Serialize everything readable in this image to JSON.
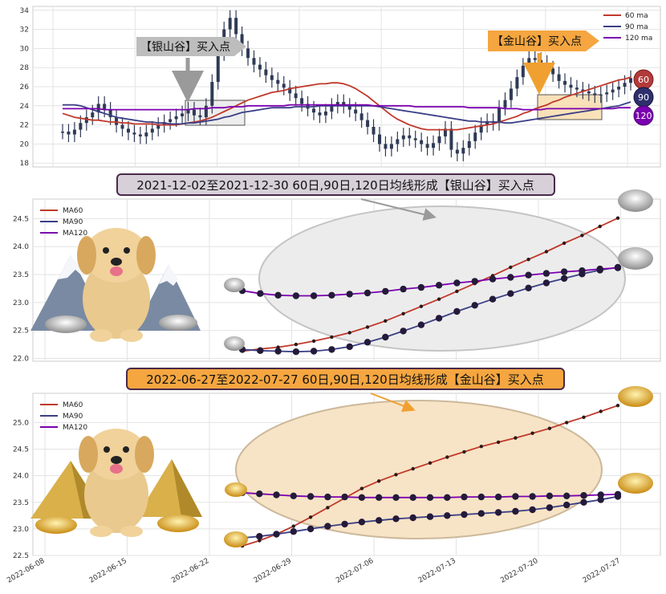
{
  "colors": {
    "ma60": "#c0392b",
    "ma90": "#3b3f86",
    "ma120": "#7b00b0",
    "candle": "#2f3a55",
    "silver_fill": "#e8e8e8",
    "gold_fill": "#f7d9a8",
    "silver_banner": "#d7d0d9",
    "gold_banner": "#f5a640"
  },
  "chart_data": [
    {
      "type": "line",
      "name": "top",
      "ylim": [
        17.6,
        34.4
      ],
      "yticks": [
        "18",
        "20",
        "22",
        "24",
        "26",
        "28",
        "30",
        "32",
        "34"
      ],
      "legend": [
        "60 ma",
        "90 ma",
        "120 ma"
      ],
      "badges": [
        "60",
        "90",
        "120"
      ],
      "callouts": {
        "silver": "【银山谷】买入点",
        "gold": "【金山谷】买入点"
      },
      "close": [
        21.3,
        21.0,
        21.5,
        22.2,
        22.8,
        23.3,
        24.2,
        23.6,
        22.8,
        22.0,
        21.6,
        21.2,
        21.0,
        20.8,
        21.2,
        21.6,
        22.0,
        22.3,
        22.6,
        22.9,
        23.2,
        23.6,
        23.0,
        22.8,
        24.0,
        26.5,
        29.5,
        32.0,
        33.2,
        31.5,
        30.0,
        29.0,
        28.3,
        27.8,
        27.2,
        26.7,
        26.3,
        25.9,
        25.3,
        24.8,
        24.2,
        23.7,
        23.3,
        23.0,
        23.4,
        24.0,
        24.4,
        24.0,
        23.6,
        23.2,
        22.5,
        21.8,
        21.0,
        20.0,
        19.5,
        20.0,
        20.5,
        20.9,
        20.6,
        20.4,
        20.0,
        19.6,
        20.1,
        20.8,
        21.6,
        19.4,
        19.0,
        19.6,
        20.3,
        21.2,
        22.0,
        22.4,
        22.2,
        23.8,
        24.6,
        25.8,
        27.0,
        28.2,
        29.0,
        28.8,
        28.5,
        27.9,
        27.3,
        26.6,
        26.2,
        25.9,
        25.7,
        25.5,
        25.3,
        25.1,
        25.2,
        25.4,
        25.7,
        26.0,
        26.4,
        26.9
      ],
      "series": [
        {
          "name": "60 ma",
          "values": [
            23.2,
            23.0,
            22.8,
            22.7,
            22.6,
            22.5,
            22.5,
            22.4,
            22.3,
            22.3,
            22.2,
            22.2,
            22.1,
            22.1,
            22.1,
            22.1,
            22.0,
            22.0,
            22.0,
            22.0,
            22.1,
            22.2,
            22.3,
            22.4,
            22.6,
            22.8,
            23.1,
            23.4,
            23.7,
            24.0,
            24.3,
            24.6,
            24.8,
            25.0,
            25.2,
            25.4,
            25.5,
            25.6,
            25.8,
            25.9,
            26.0,
            26.1,
            26.2,
            26.3,
            26.3,
            26.4,
            26.4,
            26.3,
            26.1,
            25.8,
            25.4,
            25.0,
            24.5,
            24.0,
            23.5,
            23.0,
            22.6,
            22.3,
            22.0,
            21.8,
            21.6,
            21.5,
            21.5,
            21.5,
            21.5,
            21.5,
            21.5,
            21.6,
            21.7,
            21.8,
            21.9,
            22.0,
            22.1,
            22.3,
            22.5,
            22.7,
            22.9,
            23.2,
            23.4,
            23.7,
            23.9,
            24.1,
            24.4,
            24.6,
            24.9,
            25.1,
            25.3,
            25.5,
            25.7,
            25.9,
            26.1,
            26.3,
            26.5,
            26.7,
            26.8,
            27.0
          ]
        },
        {
          "name": "90 ma",
          "values": [
            24.1,
            24.1,
            24.1,
            24.0,
            23.8,
            23.6,
            23.4,
            23.2,
            23.0,
            22.8,
            22.7,
            22.6,
            22.5,
            22.4,
            22.3,
            22.3,
            22.2,
            22.2,
            22.1,
            22.1,
            22.1,
            22.2,
            22.2,
            22.3,
            22.4,
            22.5,
            22.6,
            22.8,
            22.9,
            23.1,
            23.3,
            23.4,
            23.5,
            23.6,
            23.7,
            23.8,
            23.8,
            23.8,
            23.8,
            23.9,
            23.9,
            23.9,
            23.9,
            24.0,
            24.0,
            24.0,
            24.0,
            24.0,
            24.0,
            24.0,
            24.0,
            24.0,
            24.0,
            23.9,
            23.8,
            23.7,
            23.6,
            23.5,
            23.4,
            23.3,
            23.2,
            23.1,
            23.0,
            22.9,
            22.8,
            22.7,
            22.6,
            22.5,
            22.4,
            22.4,
            22.3,
            22.3,
            22.3,
            22.3,
            22.2,
            22.2,
            22.3,
            22.4,
            22.5,
            22.6,
            22.7,
            22.8,
            22.9,
            23.0,
            23.1,
            23.2,
            23.3,
            23.4,
            23.5,
            23.6,
            23.7,
            23.8,
            23.9,
            24.0,
            24.2,
            24.4
          ]
        },
        {
          "name": "120 ma",
          "values": [
            23.7,
            23.7,
            23.7,
            23.7,
            23.7,
            23.7,
            23.7,
            23.6,
            23.6,
            23.6,
            23.6,
            23.6,
            23.6,
            23.6,
            23.6,
            23.6,
            23.6,
            23.6,
            23.6,
            23.6,
            23.6,
            23.6,
            23.7,
            23.7,
            23.7,
            23.8,
            23.8,
            23.8,
            23.9,
            23.9,
            23.9,
            24.0,
            24.0,
            24.0,
            24.0,
            24.0,
            24.0,
            24.0,
            24.1,
            24.1,
            24.1,
            24.1,
            24.1,
            24.1,
            24.1,
            24.1,
            24.1,
            24.1,
            24.1,
            24.1,
            24.1,
            24.1,
            24.0,
            24.0,
            24.0,
            24.0,
            24.0,
            24.0,
            24.0,
            23.9,
            23.9,
            23.9,
            23.9,
            23.9,
            23.9,
            23.9,
            23.9,
            23.9,
            23.8,
            23.8,
            23.8,
            23.8,
            23.8,
            23.8,
            23.7,
            23.7,
            23.7,
            23.6,
            23.6,
            23.6,
            23.6,
            23.7,
            23.7,
            23.7,
            23.7,
            23.7,
            23.7,
            23.7,
            23.7,
            23.7,
            23.7,
            23.7,
            23.7,
            23.8,
            23.8,
            23.8
          ]
        }
      ]
    },
    {
      "type": "line",
      "name": "silver",
      "title": "2021-12-02至2021-12-30 60日,90日,120日均线形成【银山谷】买入点",
      "ylim": [
        21.95,
        24.85
      ],
      "yticks": [
        "22.0",
        "22.5",
        "23.0",
        "23.5",
        "24.0",
        "24.5"
      ],
      "legend": [
        "MA60",
        "MA90",
        "MA120"
      ],
      "x": [
        1,
        2,
        3,
        4,
        5,
        6,
        7,
        8,
        9,
        10,
        11,
        12,
        13,
        14,
        15,
        16,
        17,
        18,
        19,
        20,
        21,
        22
      ],
      "series": [
        {
          "name": "MA60",
          "values": [
            22.13,
            22.17,
            22.2,
            22.25,
            22.31,
            22.38,
            22.46,
            22.56,
            22.67,
            22.8,
            22.93,
            23.06,
            23.2,
            23.34,
            23.48,
            23.63,
            23.77,
            23.91,
            24.06,
            24.2,
            24.36,
            24.51
          ]
        },
        {
          "name": "MA90",
          "values": [
            22.16,
            22.14,
            22.13,
            22.12,
            22.13,
            22.16,
            22.21,
            22.29,
            22.38,
            22.49,
            22.6,
            22.72,
            22.84,
            22.95,
            23.06,
            23.16,
            23.26,
            23.35,
            23.43,
            23.51,
            23.58,
            23.63
          ]
        },
        {
          "name": "MA120",
          "values": [
            23.21,
            23.16,
            23.13,
            23.12,
            23.12,
            23.13,
            23.15,
            23.17,
            23.2,
            23.24,
            23.27,
            23.31,
            23.35,
            23.38,
            23.42,
            23.45,
            23.49,
            23.52,
            23.55,
            23.57,
            23.6,
            23.62
          ]
        }
      ]
    },
    {
      "type": "line",
      "name": "gold",
      "title": "2022-06-27至2022-07-27 60日,90日,120日均线形成【金山谷】买入点",
      "ylim": [
        22.5,
        25.55
      ],
      "yticks": [
        "22.5",
        "23.0",
        "23.5",
        "24.0",
        "24.5",
        "25.0"
      ],
      "legend": [
        "MA60",
        "MA90",
        "MA120"
      ],
      "xticks": [
        "2022-06-08",
        "2022-06-15",
        "2022-06-22",
        "2022-06-29",
        "2022-07-06",
        "2022-07-13",
        "2022-07-20",
        "2022-07-27"
      ],
      "x": [
        "2022-06-27",
        "2022-06-28",
        "2022-06-29",
        "2022-06-30",
        "2022-07-01",
        "2022-07-04",
        "2022-07-05",
        "2022-07-06",
        "2022-07-07",
        "2022-07-08",
        "2022-07-11",
        "2022-07-12",
        "2022-07-13",
        "2022-07-14",
        "2022-07-15",
        "2022-07-18",
        "2022-07-19",
        "2022-07-20",
        "2022-07-21",
        "2022-07-22",
        "2022-07-25",
        "2022-07-26",
        "2022-07-27"
      ],
      "series": [
        {
          "name": "MA60",
          "values": [
            22.68,
            22.78,
            22.9,
            23.05,
            23.22,
            23.4,
            23.58,
            23.76,
            23.9,
            24.02,
            24.13,
            24.24,
            24.35,
            24.45,
            24.55,
            24.63,
            24.71,
            24.8,
            24.89,
            25.0,
            25.1,
            25.21,
            25.32
          ]
        },
        {
          "name": "MA90",
          "values": [
            22.83,
            22.86,
            22.9,
            22.95,
            23.0,
            23.05,
            23.09,
            23.13,
            23.16,
            23.19,
            23.21,
            23.23,
            23.25,
            23.27,
            23.29,
            23.31,
            23.33,
            23.36,
            23.4,
            23.45,
            23.5,
            23.55,
            23.61
          ]
        },
        {
          "name": "MA120",
          "values": [
            23.68,
            23.66,
            23.64,
            23.62,
            23.61,
            23.6,
            23.6,
            23.59,
            23.59,
            23.59,
            23.59,
            23.59,
            23.59,
            23.6,
            23.6,
            23.6,
            23.61,
            23.61,
            23.62,
            23.62,
            23.63,
            23.64,
            23.65
          ]
        }
      ]
    }
  ]
}
